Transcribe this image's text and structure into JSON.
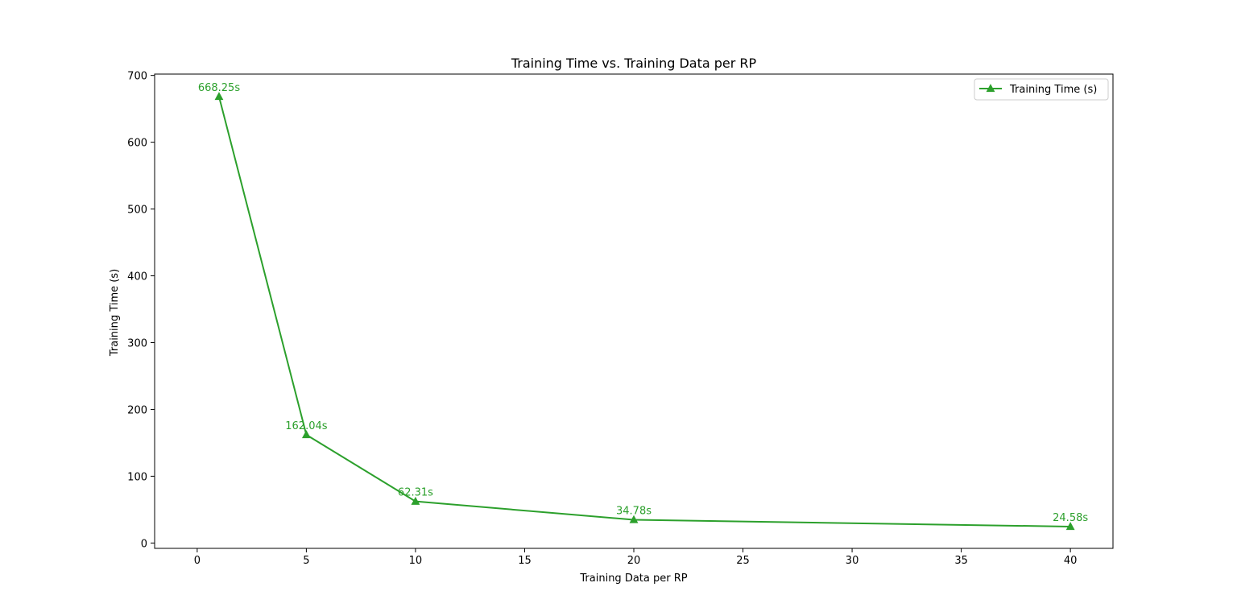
{
  "chart_data": {
    "type": "line",
    "title": "Training Time vs. Training Data per RP",
    "xlabel": "Training Data per RP",
    "ylabel": "Training Time (s)",
    "xlim": [
      -1.95,
      41.95
    ],
    "ylim": [
      -8.0,
      702.0
    ],
    "xticks": [
      0,
      5,
      10,
      15,
      20,
      25,
      30,
      35,
      40
    ],
    "yticks": [
      0,
      100,
      200,
      300,
      400,
      500,
      600,
      700
    ],
    "grid": false,
    "legend_position": "top-right",
    "series": [
      {
        "name": "Training Time (s)",
        "color": "#2ca02c",
        "marker": "triangle-up",
        "x": [
          1,
          5,
          10,
          20,
          40
        ],
        "y": [
          668.25,
          162.04,
          62.31,
          34.78,
          24.58
        ],
        "labels": [
          "668.25s",
          "162.04s",
          "62.31s",
          "34.78s",
          "24.58s"
        ]
      }
    ]
  }
}
